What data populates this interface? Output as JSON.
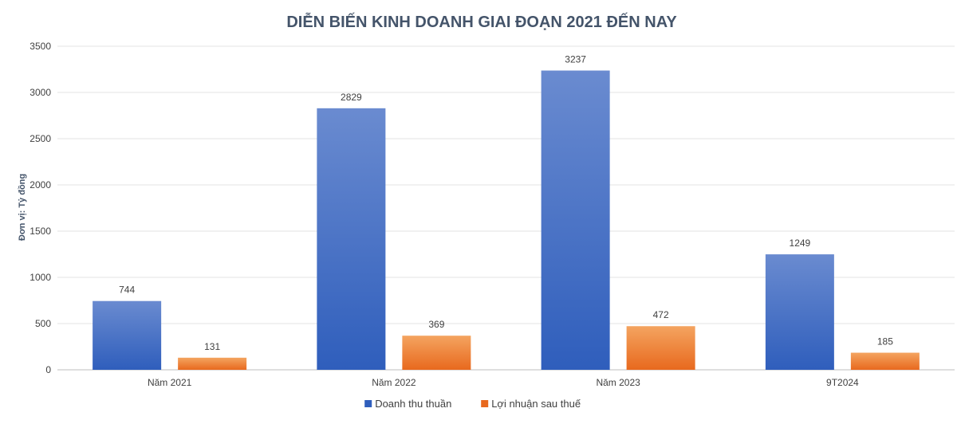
{
  "chart_data": {
    "type": "bar",
    "title": "DIỄN BIẾN KINH DOANH GIAI ĐOẠN 2021 ĐẾN NAY",
    "ylabel": "Đơn vị: Tỷ đồng",
    "xlabel": "",
    "categories": [
      "Năm 2021",
      "Năm 2022",
      "Năm 2023",
      "9T2024"
    ],
    "series": [
      {
        "name": "Doanh thu thuần",
        "values": [
          744,
          2829,
          3237,
          1249
        ],
        "color_top": "#6a8bd0",
        "color_bottom": "#2f5ebc"
      },
      {
        "name": "Lợi nhuận sau thuế",
        "values": [
          131,
          369,
          472,
          185
        ],
        "color_top": "#f4a460",
        "color_bottom": "#e8691e"
      }
    ],
    "ylim": [
      0,
      3500
    ],
    "yticks": [
      0,
      500,
      1000,
      1500,
      2000,
      2500,
      3000,
      3500
    ],
    "grid": true,
    "legend_position": "bottom"
  }
}
